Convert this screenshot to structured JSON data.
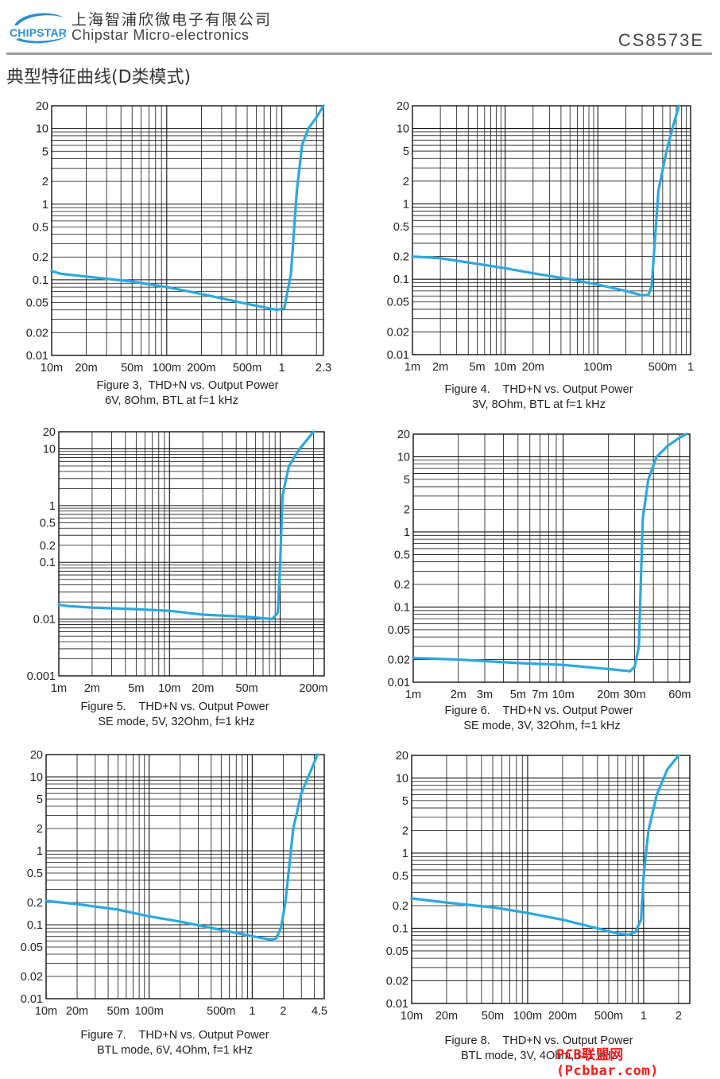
{
  "header": {
    "logo_text": "CHIPSTAR",
    "company_cn": "上海智浦欣微电子有限公司",
    "company_en": "Chipstar Micro-electronics",
    "part_number": "CS8573E"
  },
  "section_title": "典型特征曲线(D类模式)",
  "colors": {
    "curve": "#2ba8e0",
    "grid": "#111111",
    "rule": "#9a9a9a",
    "watermark": "#ff1a1a"
  },
  "watermark": "PCB联盟网 (Pcbbar.com)",
  "chart_data": [
    {
      "type": "line",
      "figure": "Figure 3,  THD+N vs. Output Power",
      "caption_line2": "6V, 8Ohm, BTL at f=1 kHz",
      "xscale": "log",
      "yscale": "log",
      "xlim": [
        0.01,
        2.3
      ],
      "ylim": [
        0.01,
        20
      ],
      "x_ticks": [
        0.01,
        0.02,
        0.05,
        0.1,
        0.2,
        0.5,
        1,
        2.3
      ],
      "x_tick_labels": [
        "10m",
        "20m",
        "50m",
        "100m",
        "200m",
        "500m",
        "1",
        "2.3"
      ],
      "y_ticks": [
        0.01,
        0.02,
        0.05,
        0.1,
        0.2,
        0.5,
        1,
        2,
        5,
        10,
        20
      ],
      "y_tick_labels": [
        "0.01",
        "0.02",
        "0.05",
        "0.1",
        "0.2",
        "0.5",
        "1",
        "2",
        "5",
        "10",
        "20"
      ],
      "grid": true,
      "series": [
        {
          "x": [
            0.01,
            0.012,
            0.02,
            0.05,
            0.1,
            0.2,
            0.5,
            0.9,
            1.05,
            1.2,
            1.35,
            1.5,
            1.7,
            2.0,
            2.3
          ],
          "y": [
            0.13,
            0.12,
            0.11,
            0.095,
            0.08,
            0.065,
            0.048,
            0.04,
            0.042,
            0.12,
            1.5,
            6,
            10,
            14,
            20
          ]
        }
      ]
    },
    {
      "type": "line",
      "figure": "Figure 4.    THD+N vs. Output Power",
      "caption_line2": "3V, 8Ohm, BTL at f=1 kHz",
      "xscale": "log",
      "yscale": "log",
      "xlim": [
        0.001,
        1
      ],
      "ylim": [
        0.01,
        20
      ],
      "x_ticks": [
        0.001,
        0.002,
        0.005,
        0.01,
        0.02,
        0.1,
        0.5,
        1
      ],
      "x_tick_labels": [
        "1m",
        "2m",
        "5m",
        "10m",
        "20m",
        "100m",
        "500m",
        "1"
      ],
      "y_ticks": [
        0.01,
        0.02,
        0.05,
        0.1,
        0.2,
        0.5,
        1,
        2,
        5,
        10,
        20
      ],
      "y_tick_labels": [
        "0.01",
        "0.02",
        "0.05",
        "0.1",
        "0.2",
        "0.5",
        "1",
        "2",
        "5",
        "10",
        "20"
      ],
      "grid": true,
      "series": [
        {
          "x": [
            0.001,
            0.002,
            0.005,
            0.01,
            0.02,
            0.05,
            0.1,
            0.2,
            0.3,
            0.35,
            0.38,
            0.45,
            0.55,
            0.65,
            0.75
          ],
          "y": [
            0.2,
            0.19,
            0.16,
            0.14,
            0.12,
            0.1,
            0.085,
            0.07,
            0.061,
            0.062,
            0.08,
            1.5,
            5,
            11,
            20
          ]
        }
      ]
    },
    {
      "type": "line",
      "figure": "Figure 5.    THD+N vs. Output Power",
      "caption_line2": "SE mode, 5V, 32Ohm, f=1 kHz",
      "xscale": "log",
      "yscale": "log",
      "xlim": [
        0.001,
        0.25
      ],
      "ylim": [
        0.001,
        20
      ],
      "x_ticks": [
        0.001,
        0.002,
        0.005,
        0.01,
        0.02,
        0.05,
        0.2
      ],
      "x_tick_labels": [
        "1m",
        "2m",
        "5m",
        "10m",
        "20m",
        "50m",
        "200m"
      ],
      "y_ticks": [
        0.001,
        0.01,
        0.1,
        0.2,
        0.5,
        1,
        10,
        20
      ],
      "y_tick_labels": [
        "0.001",
        "0.01",
        "0.1",
        "0.2",
        "0.5",
        "1",
        "10",
        "20"
      ],
      "grid": true,
      "series": [
        {
          "x": [
            0.001,
            0.0012,
            0.002,
            0.005,
            0.01,
            0.02,
            0.05,
            0.085,
            0.095,
            0.1,
            0.105,
            0.12,
            0.15,
            0.2
          ],
          "y": [
            0.018,
            0.017,
            0.016,
            0.015,
            0.014,
            0.012,
            0.011,
            0.01,
            0.013,
            0.1,
            1.5,
            5,
            10,
            20
          ]
        }
      ]
    },
    {
      "type": "line",
      "figure": "Figure 6.    THD+N vs. Output Power",
      "caption_line2": "SE mode, 3V, 32Ohm, f=1 kHz",
      "xscale": "log",
      "yscale": "log",
      "xlim": [
        0.001,
        0.07
      ],
      "ylim": [
        0.01,
        20
      ],
      "x_ticks": [
        0.001,
        0.002,
        0.003,
        0.005,
        0.007,
        0.01,
        0.02,
        0.03,
        0.06
      ],
      "x_tick_labels": [
        "1m",
        "2m",
        "3m",
        "5m",
        "7m",
        "10m",
        "20m",
        "30m",
        "60m"
      ],
      "y_ticks": [
        0.01,
        0.02,
        0.05,
        0.1,
        0.2,
        0.5,
        1,
        2,
        5,
        10,
        20
      ],
      "y_tick_labels": [
        "0.01",
        "0.02",
        "0.05",
        "0.1",
        "0.2",
        "0.5",
        "1",
        "2",
        "5",
        "10",
        "20"
      ],
      "grid": true,
      "series": [
        {
          "x": [
            0.001,
            0.002,
            0.005,
            0.01,
            0.02,
            0.028,
            0.03,
            0.032,
            0.034,
            0.037,
            0.042,
            0.05,
            0.06,
            0.066
          ],
          "y": [
            0.021,
            0.02,
            0.018,
            0.017,
            0.015,
            0.014,
            0.016,
            0.03,
            1.5,
            5,
            10,
            14,
            18,
            20
          ]
        }
      ]
    },
    {
      "type": "line",
      "figure": "Figure 7.    THD+N vs. Output Power",
      "caption_line2": "BTL mode, 6V, 4Ohm, f=1 kHz",
      "xscale": "log",
      "yscale": "log",
      "xlim": [
        0.01,
        5
      ],
      "ylim": [
        0.01,
        20
      ],
      "x_ticks": [
        0.01,
        0.02,
        0.05,
        0.1,
        0.5,
        1,
        2,
        4.5
      ],
      "x_tick_labels": [
        "10m",
        "20m",
        "50m",
        "100m",
        "500m",
        "1",
        "2",
        "4.5"
      ],
      "y_ticks": [
        0.01,
        0.02,
        0.05,
        0.1,
        0.2,
        0.5,
        1,
        2,
        5,
        10,
        20
      ],
      "y_tick_labels": [
        "0.01",
        "0.02",
        "0.05",
        "0.1",
        "0.2",
        "0.5",
        "1",
        "2",
        "5",
        "10",
        "20"
      ],
      "grid": true,
      "series": [
        {
          "x": [
            0.01,
            0.02,
            0.05,
            0.1,
            0.2,
            0.5,
            1,
            1.5,
            1.7,
            1.9,
            2.1,
            2.5,
            3,
            3.5,
            4.3
          ],
          "y": [
            0.21,
            0.19,
            0.16,
            0.13,
            0.11,
            0.085,
            0.07,
            0.063,
            0.065,
            0.09,
            0.2,
            2,
            6,
            10,
            20
          ]
        }
      ]
    },
    {
      "type": "line",
      "figure": "Figure 8.    THD+N vs. Output Power",
      "caption_line2": "BTL mode, 3V, 4Ohm, f=1 kHz",
      "xscale": "log",
      "yscale": "log",
      "xlim": [
        0.01,
        2.5
      ],
      "ylim": [
        0.01,
        20
      ],
      "x_ticks": [
        0.01,
        0.02,
        0.05,
        0.1,
        0.2,
        0.5,
        1,
        2
      ],
      "x_tick_labels": [
        "10m",
        "20m",
        "50m",
        "100m",
        "200m",
        "500m",
        "1",
        "2"
      ],
      "y_ticks": [
        0.01,
        0.02,
        0.05,
        0.1,
        0.2,
        0.5,
        1,
        2,
        5,
        10,
        20
      ],
      "y_tick_labels": [
        "0.01",
        "0.02",
        "0.05",
        "0.1",
        "0.2",
        "0.5",
        "1",
        "2",
        "5",
        "10",
        "20"
      ],
      "grid": true,
      "series": [
        {
          "x": [
            0.01,
            0.02,
            0.05,
            0.1,
            0.2,
            0.4,
            0.6,
            0.75,
            0.85,
            0.95,
            1.0,
            1.1,
            1.3,
            1.6,
            2.0
          ],
          "y": [
            0.25,
            0.22,
            0.19,
            0.16,
            0.13,
            0.1,
            0.085,
            0.082,
            0.09,
            0.13,
            0.5,
            2,
            6,
            13,
            20
          ]
        }
      ]
    }
  ]
}
